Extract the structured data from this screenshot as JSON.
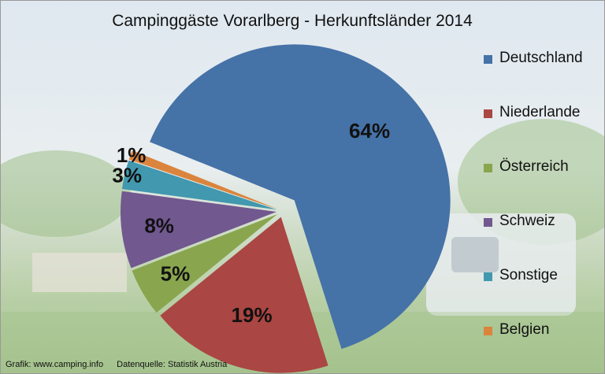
{
  "chart_data": {
    "type": "pie",
    "title": "Campinggäste Vorarlberg - Herkunftsländer 2014",
    "categories": [
      "Deutschland",
      "Niederlande",
      "Österreich",
      "Schweiz",
      "Sonstige",
      "Belgien"
    ],
    "values": [
      64,
      19,
      5,
      8,
      3,
      1
    ],
    "value_labels": [
      "64%",
      "19%",
      "5%",
      "8%",
      "3%",
      "1%"
    ],
    "colors": [
      "#4572a7",
      "#aa4643",
      "#89a54e",
      "#71588f",
      "#4198af",
      "#db843d"
    ],
    "legend": "right",
    "exploded": true
  },
  "footer": {
    "graphic": "Grafik: www.camping.info",
    "source": "Datenquelle: Statistik Austria"
  }
}
